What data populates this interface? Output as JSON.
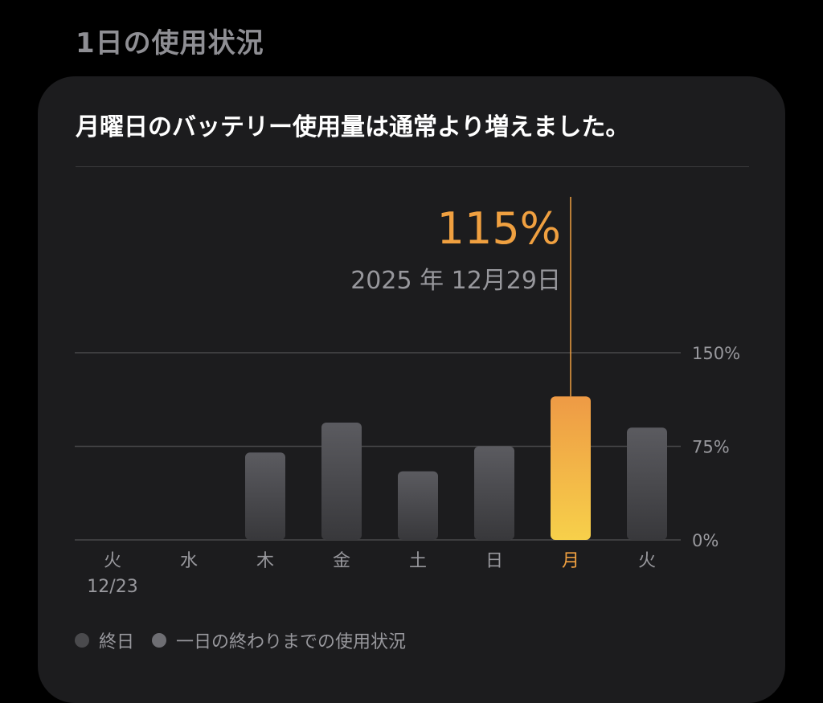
{
  "section_title": "1日の使用状況",
  "card": {
    "headline": "月曜日のバッテリー使用量は通常より増えました。",
    "selection": {
      "value_label": "115%",
      "date_label": "2025 年 12月29日"
    },
    "legend": [
      {
        "label": "終日",
        "color": "#4a4a4d"
      },
      {
        "label": "一日の終わりまでの使用状況",
        "color": "#6e6e73"
      }
    ]
  },
  "colors": {
    "accent": "#f0a040",
    "accent_gradient_top": "#ee9a45",
    "accent_gradient_bottom": "#f7d04a",
    "bar_gray_top": "#5b5b60",
    "bar_gray_bottom": "#38383b",
    "text_secondary": "#98989d"
  },
  "chart_data": {
    "type": "bar",
    "categories": [
      "火",
      "水",
      "木",
      "金",
      "土",
      "日",
      "月",
      "火"
    ],
    "sublabels": [
      "12/23",
      "",
      "",
      "",
      "",
      "",
      "",
      ""
    ],
    "values": [
      0,
      0,
      70,
      94,
      55,
      75,
      115,
      90
    ],
    "selected_index": 6,
    "ylim": [
      0,
      150
    ],
    "yticks": [
      0,
      75,
      150
    ],
    "ytick_labels": [
      "0%",
      "75%",
      "150%"
    ],
    "grid": true
  }
}
